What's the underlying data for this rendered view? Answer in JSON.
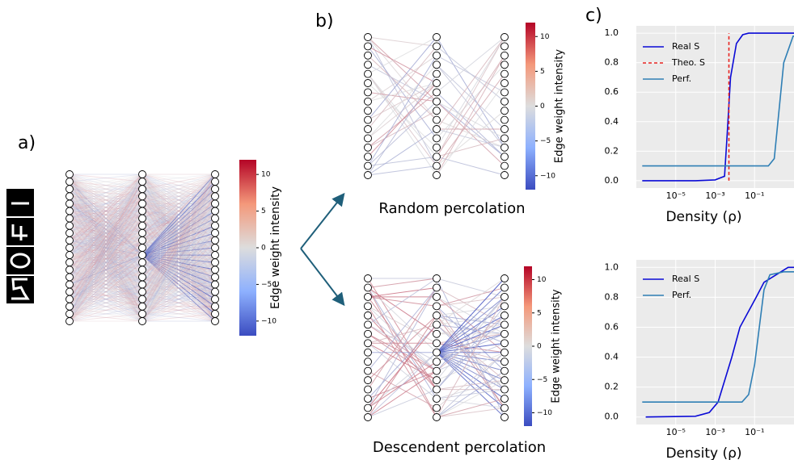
{
  "panel_labels": {
    "a": "a)",
    "b": "b)",
    "c": "c)"
  },
  "networks": [
    {
      "colorbar": {
        "label": "Edge weight intensity",
        "lim": [
          -12,
          12
        ],
        "ticks": [
          10,
          5,
          0,
          {
            "value": -5,
            "label": "−5"
          },
          {
            "value": -10,
            "label": "−10"
          }
        ]
      }
    },
    {
      "caption": "Random percolation",
      "colorbar": {
        "label": "Edge weight intensity",
        "lim": [
          -12,
          12
        ],
        "ticks": [
          10,
          5,
          0,
          {
            "value": -5,
            "label": "−5"
          },
          {
            "value": -10,
            "label": "−10"
          }
        ]
      }
    },
    {
      "caption": "Descendent percolation",
      "colorbar": {
        "label": "Edge weight intensity",
        "lim": [
          -12,
          12
        ],
        "ticks": [
          10,
          5,
          0,
          {
            "value": -5,
            "label": "−5"
          },
          {
            "value": -10,
            "label": "−10"
          }
        ]
      }
    }
  ],
  "chart_data": [
    {
      "type": "line",
      "xlabel": "Density (ρ)",
      "xscale": "log",
      "grid": true,
      "legend": "upper left",
      "xlim": [
        1e-07,
        10
      ],
      "xticks": [
        {
          "value": 1e-05,
          "label": "10⁻⁵"
        },
        {
          "value": 0.001,
          "label": "10⁻³"
        },
        {
          "value": 0.1,
          "label": "10⁻¹"
        }
      ],
      "ylim": [
        -0.05,
        1.05
      ],
      "yticks": [
        {
          "value": 0,
          "label": "0.0"
        },
        0.2,
        0.4,
        0.6,
        0.8,
        {
          "value": 1,
          "label": "1.0"
        }
      ],
      "series": [
        {
          "name": "Real S",
          "color": "#0a0ad6",
          "linestyle": "solid",
          "x": [
            2e-07,
            0.0001,
            0.001,
            0.003,
            0.004,
            0.006,
            0.012,
            0.025,
            0.05,
            10
          ],
          "values": [
            0,
            0,
            0.005,
            0.03,
            0.3,
            0.7,
            0.93,
            0.99,
            1,
            1
          ]
        },
        {
          "name": "Theo. S",
          "color": "#e8231f",
          "linestyle": "dashed",
          "x": [
            0.005,
            0.005
          ],
          "values": [
            0,
            1
          ]
        },
        {
          "name": "Perf.",
          "color": "#2f7fb5",
          "linestyle": "solid",
          "x": [
            2e-07,
            0.5,
            1,
            3,
            9,
            10
          ],
          "values": [
            0.1,
            0.1,
            0.15,
            0.8,
            0.98,
            0.98
          ]
        }
      ]
    },
    {
      "type": "line",
      "xlabel": "Density (ρ)",
      "xscale": "log",
      "grid": true,
      "legend": "upper left",
      "xlim": [
        1e-07,
        10
      ],
      "xticks": [
        {
          "value": 1e-05,
          "label": "10⁻⁵"
        },
        {
          "value": 0.001,
          "label": "10⁻³"
        },
        {
          "value": 0.1,
          "label": "10⁻¹"
        }
      ],
      "ylim": [
        -0.05,
        1.05
      ],
      "yticks": [
        {
          "value": 0,
          "label": "0.0"
        },
        0.2,
        0.4,
        0.6,
        0.8,
        {
          "value": 1,
          "label": "1.0"
        }
      ],
      "series": [
        {
          "name": "Real S",
          "color": "#0a0ad6",
          "linestyle": "solid",
          "x": [
            3e-07,
            0.0001,
            0.0005,
            0.0014,
            0.007,
            0.018,
            0.12,
            0.3,
            5,
            10
          ],
          "values": [
            0,
            0.005,
            0.03,
            0.1,
            0.4,
            0.6,
            0.8,
            0.9,
            1,
            1
          ]
        },
        {
          "name": "Perf.",
          "color": "#2f7fb5",
          "linestyle": "solid",
          "x": [
            2e-07,
            0.023,
            0.05,
            0.1,
            0.3,
            0.6,
            3,
            10
          ],
          "values": [
            0.1,
            0.1,
            0.15,
            0.35,
            0.85,
            0.95,
            0.97,
            0.97
          ]
        }
      ]
    }
  ]
}
